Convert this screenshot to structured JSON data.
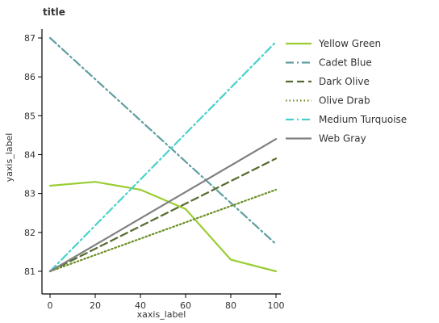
{
  "chart_data": {
    "type": "line",
    "title": "title",
    "xlabel": "xaxis_label",
    "ylabel": "yaxis_label",
    "xlim": [
      0,
      100
    ],
    "ylim": [
      81,
      87
    ],
    "x_ticks": [
      "0",
      "20",
      "40",
      "60",
      "80",
      "100"
    ],
    "y_ticks": [
      "81",
      "82",
      "83",
      "84",
      "85",
      "86",
      "87"
    ],
    "grid": false,
    "legend_position": "right",
    "series": [
      {
        "name": "Yellow Green",
        "color": "#9acd32",
        "dash": "solid",
        "points": [
          [
            0,
            83.2
          ],
          [
            20,
            83.3
          ],
          [
            40,
            83.1
          ],
          [
            60,
            82.6
          ],
          [
            80,
            81.3
          ],
          [
            100,
            81.0
          ]
        ]
      },
      {
        "name": "Cadet Blue",
        "color": "#5f9ea0",
        "dash": "dashdot",
        "points": [
          [
            0,
            87.0
          ],
          [
            100,
            81.7
          ]
        ]
      },
      {
        "name": "Dark Olive",
        "color": "#556b2f",
        "dash": "dashed",
        "points": [
          [
            0,
            81.0
          ],
          [
            100,
            83.9
          ]
        ]
      },
      {
        "name": "Olive Drab",
        "color": "#6b8e23",
        "dash": "dotted",
        "points": [
          [
            0,
            81.0
          ],
          [
            100,
            83.1
          ]
        ]
      },
      {
        "name": "Medium Turquoise",
        "color": "#48d1cc",
        "dash": "dashdot",
        "points": [
          [
            0,
            81.0
          ],
          [
            100,
            86.9
          ]
        ]
      },
      {
        "name": "Web Gray",
        "color": "#808080",
        "dash": "solid",
        "points": [
          [
            0,
            81.0
          ],
          [
            100,
            84.4
          ]
        ]
      }
    ]
  }
}
